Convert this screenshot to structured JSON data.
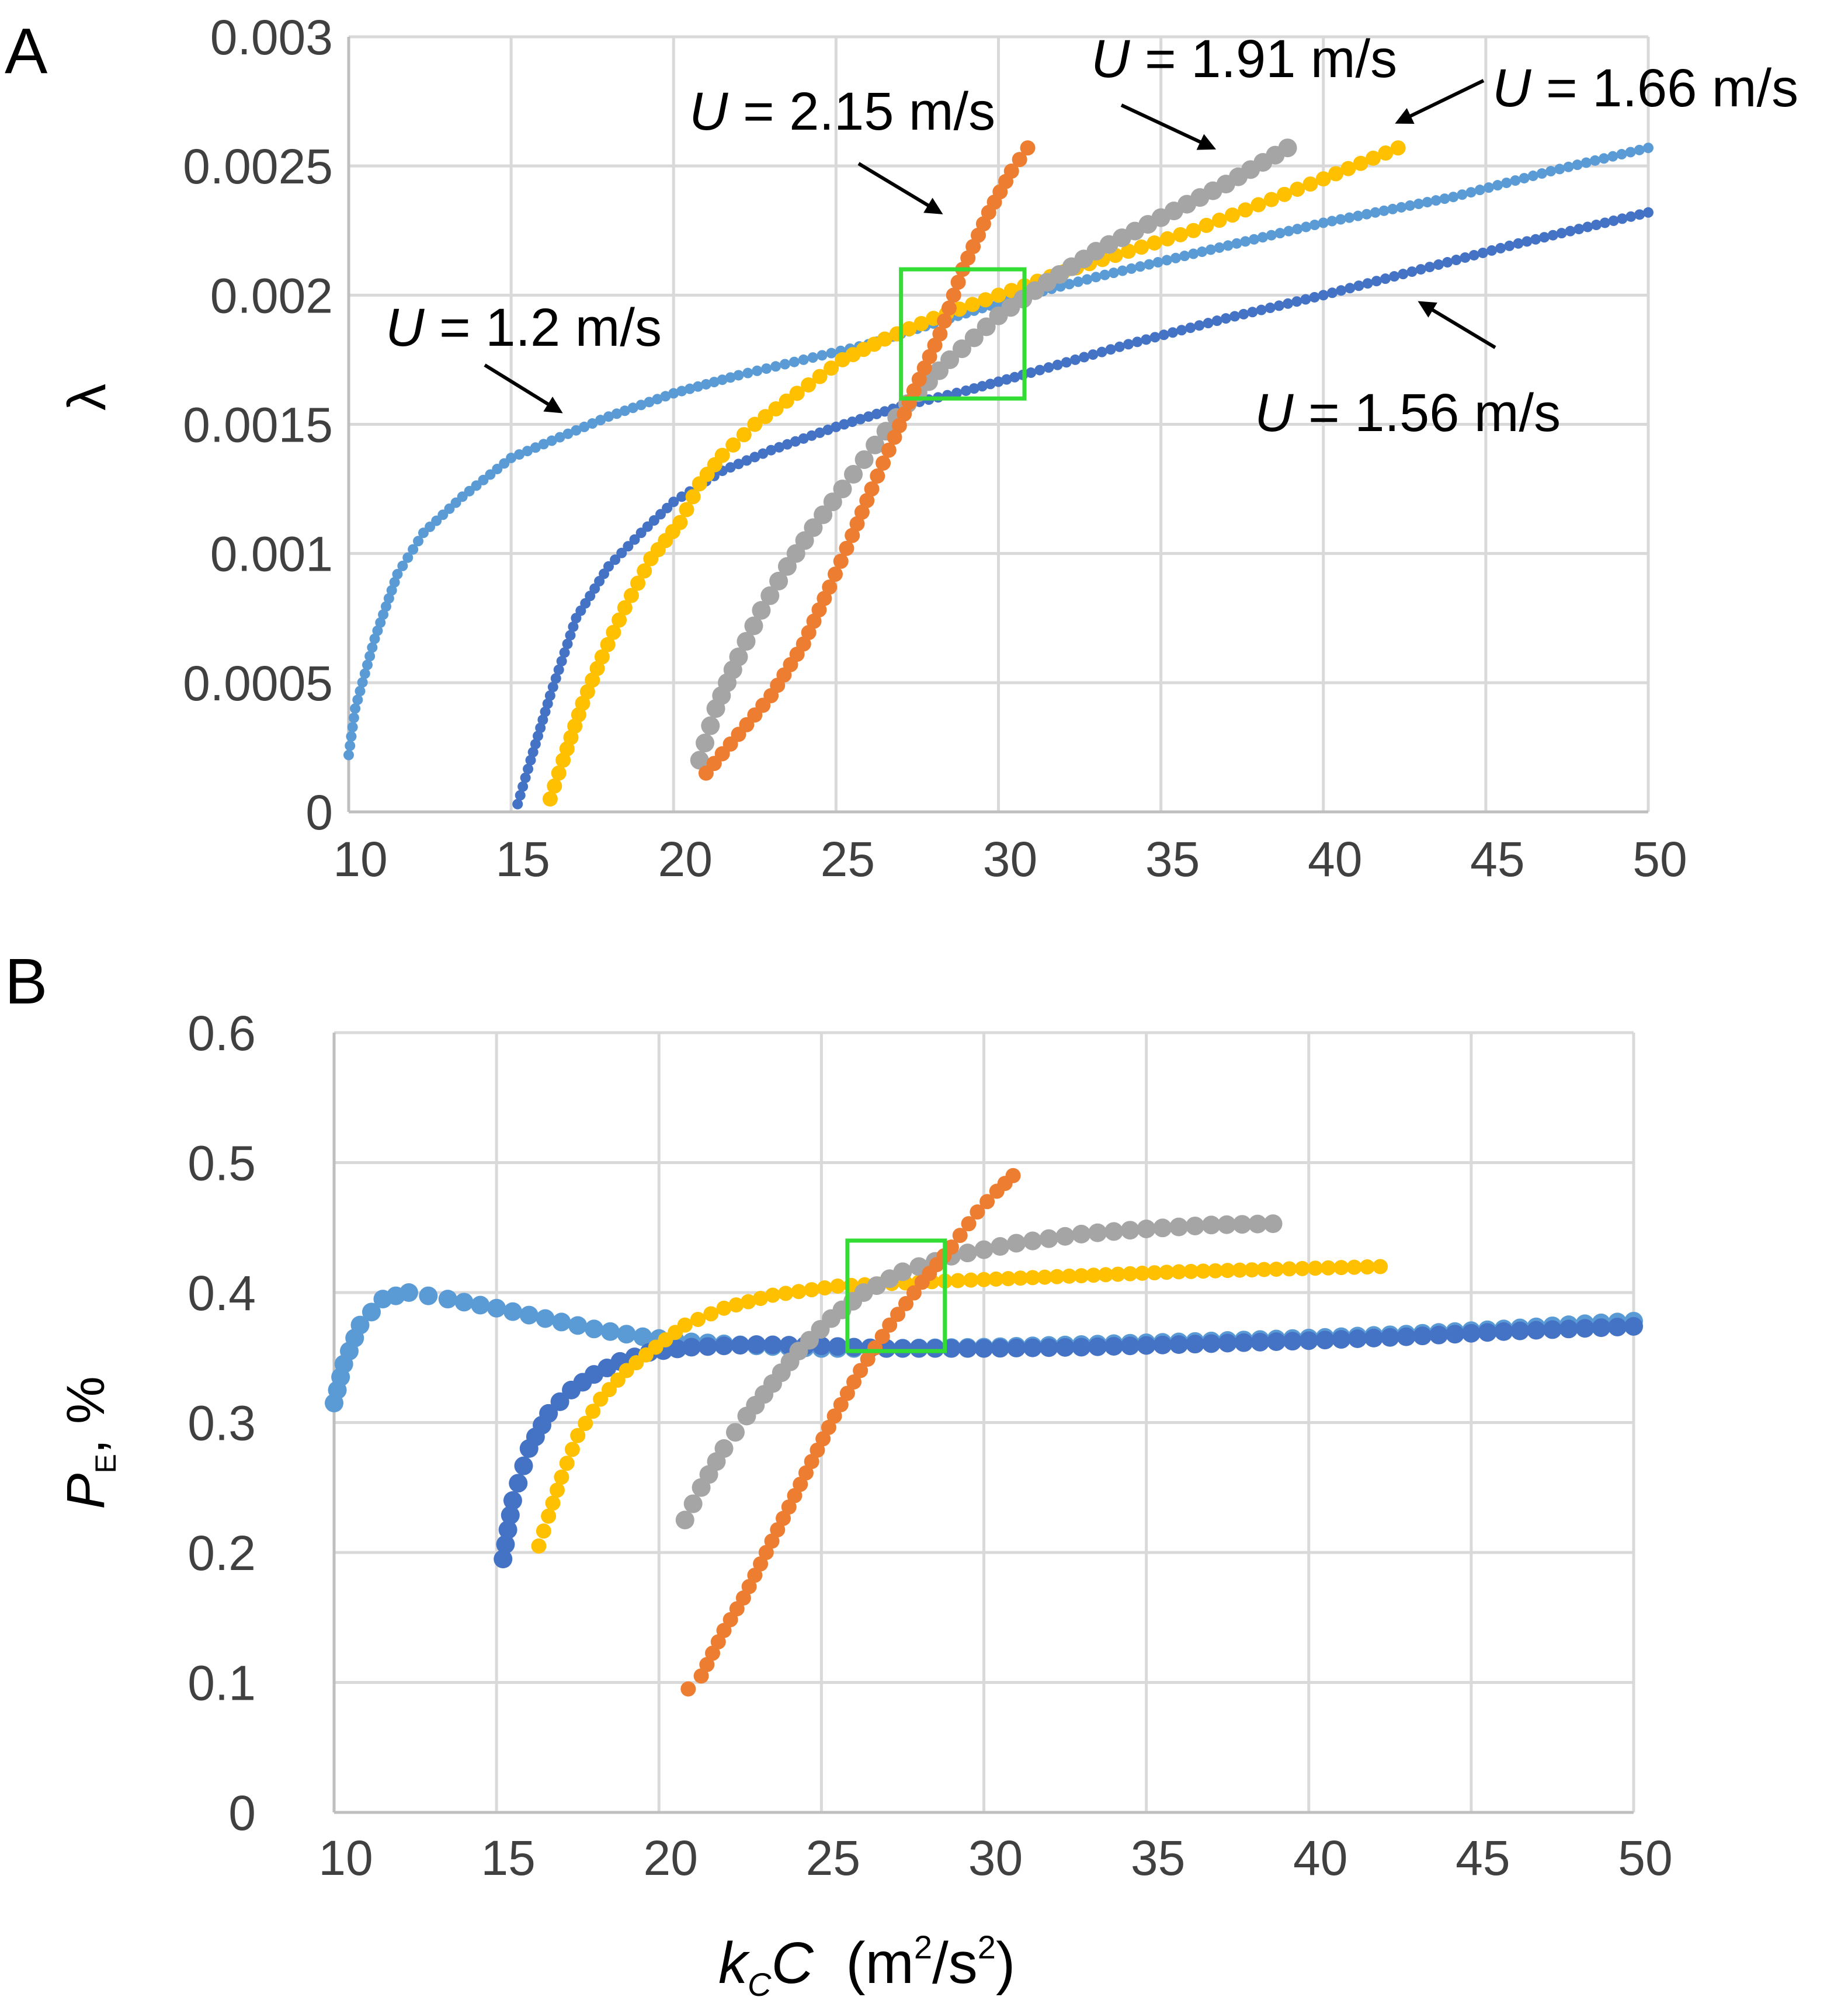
{
  "colors": {
    "U_1_2": "#5b9bd5",
    "U_1_56": "#4472c4",
    "U_1_66": "#ffc000",
    "U_1_91": "#a5a5a5",
    "U_2_15": "#ed7d31",
    "highlight_box": "#33dd33",
    "grid": "#d9d9d9"
  },
  "chart_data": [
    {
      "type": "scatter",
      "panel_label": "A",
      "ylabel": "λ",
      "xlim": [
        10,
        50
      ],
      "ylim": [
        0,
        0.003
      ],
      "x_ticks": [
        "10",
        "15",
        "20",
        "25",
        "30",
        "35",
        "40",
        "45",
        "50"
      ],
      "y_ticks": [
        "0",
        "0.0005",
        "0.001",
        "0.0015",
        "0.002",
        "0.0025",
        "0.003"
      ],
      "highlight_box": {
        "x_range": [
          27,
          30.8
        ],
        "y_range": [
          0.0016,
          0.0021
        ]
      },
      "annotations": [
        {
          "italic": "U",
          "text": " = 2.15 m/s",
          "series": "U_2_15",
          "arrow_to": [
            28.2,
            0.00232
          ]
        },
        {
          "italic": "U",
          "text": " = 1.91 m/s",
          "series": "U_1_91",
          "arrow_to": [
            36.6,
            0.00257
          ]
        },
        {
          "italic": "U",
          "text": " = 1.66 m/s",
          "series": "U_1_66",
          "arrow_to": [
            42.3,
            0.00267
          ]
        },
        {
          "italic": "U",
          "text": " = 1.2 m/s",
          "series": "U_1_2",
          "arrow_to": [
            16.5,
            0.00155
          ]
        },
        {
          "italic": "U",
          "text": " = 1.56 m/s",
          "series": "U_1_56",
          "arrow_to": [
            43,
            0.00197
          ]
        }
      ],
      "series": [
        {
          "key": "U_1_2",
          "name": "U = 1.2 m/s",
          "marker": "small",
          "points": [
            [
              10,
              0.00022
            ],
            [
              10.2,
              0.0004
            ],
            [
              10.8,
              0.00067
            ],
            [
              11.5,
              0.00092
            ],
            [
              12.3,
              0.00108
            ],
            [
              13.5,
              0.00122
            ],
            [
              15,
              0.00137
            ],
            [
              16.5,
              0.00145
            ],
            [
              18,
              0.00153
            ],
            [
              20,
              0.00162
            ],
            [
              22,
              0.00169
            ],
            [
              24,
              0.00175
            ],
            [
              26,
              0.00181
            ],
            [
              28,
              0.00189
            ],
            [
              30,
              0.00197
            ],
            [
              33,
              0.00207
            ],
            [
              36,
              0.00216
            ],
            [
              40,
              0.00228
            ],
            [
              44,
              0.00238
            ],
            [
              47,
              0.00248
            ],
            [
              50,
              0.00257
            ]
          ]
        },
        {
          "key": "U_1_56",
          "name": "U = 1.56 m/s",
          "marker": "small",
          "points": [
            [
              15.2,
              3e-05
            ],
            [
              15.6,
              0.0002
            ],
            [
              16.2,
              0.00045
            ],
            [
              17,
              0.00075
            ],
            [
              18,
              0.00095
            ],
            [
              19,
              0.00108
            ],
            [
              20,
              0.0012
            ],
            [
              21.5,
              0.00132
            ],
            [
              23,
              0.0014
            ],
            [
              25,
              0.00149
            ],
            [
              27,
              0.00157
            ],
            [
              29,
              0.00163
            ],
            [
              31,
              0.0017
            ],
            [
              34,
              0.00181
            ],
            [
              37,
              0.00191
            ],
            [
              40,
              0.002
            ],
            [
              43,
              0.0021
            ],
            [
              46,
              0.0022
            ],
            [
              50,
              0.00232
            ]
          ]
        },
        {
          "key": "U_1_66",
          "name": "U = 1.66 m/s",
          "marker": "medium",
          "points": [
            [
              16.2,
              5e-05
            ],
            [
              16.6,
              0.0002
            ],
            [
              17.2,
              0.00042
            ],
            [
              17.8,
              0.0006
            ],
            [
              18.5,
              0.00079
            ],
            [
              19.3,
              0.00098
            ],
            [
              20.2,
              0.00112
            ],
            [
              20.8,
              0.00127
            ],
            [
              21.5,
              0.00138
            ],
            [
              22.5,
              0.0015
            ],
            [
              23.8,
              0.00162
            ],
            [
              25.2,
              0.00175
            ],
            [
              26.5,
              0.00183
            ],
            [
              28,
              0.00191
            ],
            [
              30,
              0.002
            ],
            [
              32,
              0.00209
            ],
            [
              34,
              0.00217
            ],
            [
              36,
              0.00225
            ],
            [
              38,
              0.00235
            ],
            [
              40,
              0.00245
            ],
            [
              42.3,
              0.00257
            ]
          ]
        },
        {
          "key": "U_1_91",
          "name": "U = 1.91 m/s",
          "marker": "large",
          "points": [
            [
              20.8,
              0.0002
            ],
            [
              21.3,
              0.0004
            ],
            [
              22,
              0.0006
            ],
            [
              22.7,
              0.00078
            ],
            [
              23.5,
              0.00095
            ],
            [
              24.3,
              0.0011
            ],
            [
              25.2,
              0.00125
            ],
            [
              26.2,
              0.00142
            ],
            [
              27.2,
              0.00158
            ],
            [
              28.5,
              0.00175
            ],
            [
              30,
              0.00192
            ],
            [
              31.5,
              0.00205
            ],
            [
              33,
              0.00217
            ],
            [
              35,
              0.0023
            ],
            [
              37,
              0.00243
            ],
            [
              38.9,
              0.00257
            ]
          ]
        },
        {
          "key": "U_2_15",
          "name": "U = 2.15 m/s",
          "marker": "medium",
          "points": [
            [
              21,
              0.00015
            ],
            [
              22,
              0.0003
            ],
            [
              23,
              0.00045
            ],
            [
              24,
              0.00065
            ],
            [
              24.8,
              0.00087
            ],
            [
              25.5,
              0.00107
            ],
            [
              26.1,
              0.00125
            ],
            [
              26.8,
              0.00145
            ],
            [
              27.4,
              0.00163
            ],
            [
              28.2,
              0.00185
            ],
            [
              28.9,
              0.0021
            ],
            [
              29.7,
              0.00232
            ],
            [
              30.4,
              0.00248
            ],
            [
              30.9,
              0.00257
            ]
          ]
        }
      ]
    },
    {
      "type": "scatter",
      "panel_label": "B",
      "ylabel": "P",
      "ylabel_sub": "E",
      "ylabel_suffix": ", %",
      "xlabel_k": "k",
      "xlabel_sub": "C",
      "xlabel_c": "C",
      "xlabel_units_open": "  (m",
      "xlabel_sup1": "2",
      "xlabel_units_mid": "/s",
      "xlabel_sup2": "2",
      "xlabel_units_close": ")",
      "xlim": [
        10,
        50
      ],
      "ylim": [
        0,
        0.6
      ],
      "x_ticks": [
        "10",
        "15",
        "20",
        "25",
        "30",
        "35",
        "40",
        "45",
        "50"
      ],
      "y_ticks": [
        "0",
        "0.1",
        "0.2",
        "0.3",
        "0.4",
        "0.5",
        "0.6"
      ],
      "highlight_box": {
        "x_range": [
          25.8,
          28.8
        ],
        "y_range": [
          0.355,
          0.44
        ]
      },
      "series": [
        {
          "key": "U_1_2",
          "name": "U = 1.2 m/s",
          "marker": "large",
          "points": [
            [
              10,
              0.315
            ],
            [
              10.3,
              0.345
            ],
            [
              10.8,
              0.375
            ],
            [
              11.5,
              0.395
            ],
            [
              12.3,
              0.4
            ],
            [
              13.5,
              0.395
            ],
            [
              15,
              0.388
            ],
            [
              16.5,
              0.38
            ],
            [
              18,
              0.372
            ],
            [
              19.5,
              0.366
            ],
            [
              21,
              0.362
            ],
            [
              23,
              0.359
            ],
            [
              25,
              0.357
            ],
            [
              27,
              0.357
            ],
            [
              30,
              0.358
            ],
            [
              33,
              0.36
            ],
            [
              36,
              0.362
            ],
            [
              40,
              0.365
            ],
            [
              43,
              0.368
            ],
            [
              46,
              0.372
            ],
            [
              48.5,
              0.376
            ],
            [
              50,
              0.378
            ]
          ]
        },
        {
          "key": "U_1_56",
          "name": "U = 1.56 m/s",
          "marker": "large",
          "points": [
            [
              15.2,
              0.195
            ],
            [
              15.5,
              0.24
            ],
            [
              16,
              0.28
            ],
            [
              16.6,
              0.307
            ],
            [
              17.3,
              0.325
            ],
            [
              18,
              0.337
            ],
            [
              18.8,
              0.347
            ],
            [
              19.7,
              0.354
            ],
            [
              21,
              0.358
            ],
            [
              23,
              0.36
            ],
            [
              25,
              0.359
            ],
            [
              27,
              0.357
            ],
            [
              30,
              0.357
            ],
            [
              33,
              0.358
            ],
            [
              36,
              0.36
            ],
            [
              40,
              0.363
            ],
            [
              43,
              0.366
            ],
            [
              46,
              0.37
            ],
            [
              50,
              0.374
            ]
          ]
        },
        {
          "key": "U_1_66",
          "name": "U = 1.66 m/s",
          "marker": "medium",
          "points": [
            [
              16.3,
              0.205
            ],
            [
              16.6,
              0.228
            ],
            [
              17,
              0.258
            ],
            [
              17.5,
              0.29
            ],
            [
              18.2,
              0.318
            ],
            [
              19,
              0.34
            ],
            [
              19.9,
              0.358
            ],
            [
              20.8,
              0.375
            ],
            [
              22,
              0.388
            ],
            [
              23.5,
              0.398
            ],
            [
              25.5,
              0.405
            ],
            [
              28,
              0.408
            ],
            [
              30,
              0.41
            ],
            [
              33,
              0.413
            ],
            [
              36,
              0.416
            ],
            [
              39,
              0.418
            ],
            [
              42.2,
              0.42
            ]
          ]
        },
        {
          "key": "U_1_91",
          "name": "U = 1.91 m/s",
          "marker": "large",
          "points": [
            [
              20.8,
              0.225
            ],
            [
              21.3,
              0.25
            ],
            [
              22,
              0.28
            ],
            [
              22.7,
              0.305
            ],
            [
              23.5,
              0.33
            ],
            [
              24.3,
              0.355
            ],
            [
              25.3,
              0.38
            ],
            [
              26.3,
              0.4
            ],
            [
              27.5,
              0.416
            ],
            [
              29,
              0.428
            ],
            [
              31,
              0.438
            ],
            [
              33,
              0.445
            ],
            [
              35,
              0.449
            ],
            [
              37,
              0.452
            ],
            [
              38.9,
              0.453
            ]
          ]
        },
        {
          "key": "U_2_15",
          "name": "U = 2.15 m/s",
          "marker": "medium",
          "points": [
            [
              20.9,
              0.095
            ],
            [
              21.3,
              0.105
            ],
            [
              22,
              0.14
            ],
            [
              22.6,
              0.165
            ],
            [
              23.3,
              0.2
            ],
            [
              24,
              0.235
            ],
            [
              24.7,
              0.27
            ],
            [
              25.4,
              0.305
            ],
            [
              26.2,
              0.34
            ],
            [
              27.1,
              0.375
            ],
            [
              28.1,
              0.408
            ],
            [
              29,
              0.435
            ],
            [
              29.8,
              0.462
            ],
            [
              30.4,
              0.478
            ],
            [
              30.9,
              0.49
            ]
          ]
        }
      ]
    }
  ]
}
